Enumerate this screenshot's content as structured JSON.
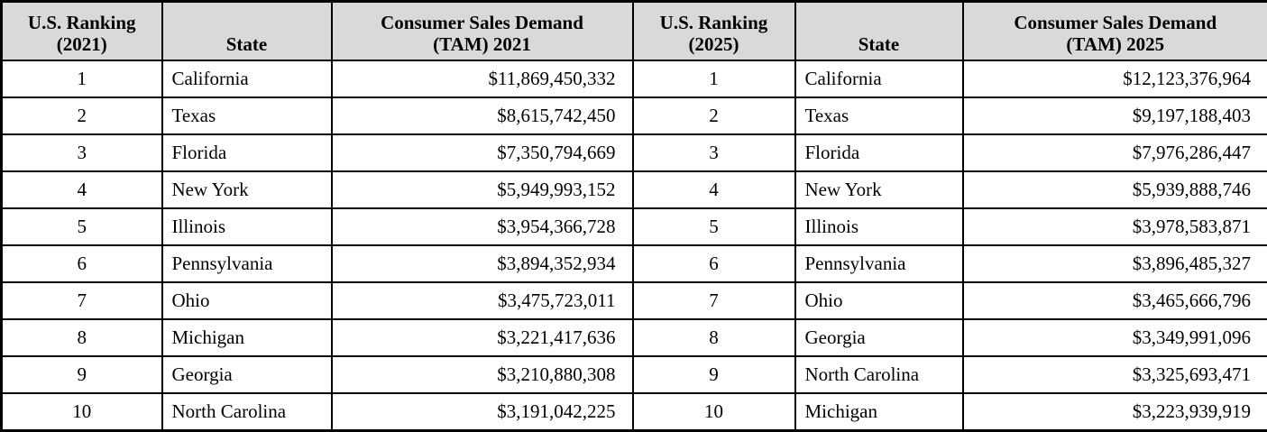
{
  "accent_colors": {
    "header_background": "#d9d9d9",
    "border": "#000000",
    "text": "#000000"
  },
  "table": {
    "headers": {
      "rank2021": {
        "line1": "U.S. Ranking",
        "line2": "(2021)"
      },
      "state1": "State",
      "tam2021": {
        "line1": "Consumer Sales Demand",
        "line2": "(TAM) 2021"
      },
      "rank2025": {
        "line1": "U.S. Ranking",
        "line2": "(2025)"
      },
      "state2": "State",
      "tam2025": {
        "line1": "Consumer Sales Demand",
        "line2": "(TAM) 2025"
      }
    },
    "rows": [
      {
        "rank_2021": "1",
        "state_2021": "California",
        "tam_2021": "$11,869,450,332",
        "rank_2025": "1",
        "state_2025": "California",
        "tam_2025": "$12,123,376,964"
      },
      {
        "rank_2021": "2",
        "state_2021": "Texas",
        "tam_2021": "$8,615,742,450",
        "rank_2025": "2",
        "state_2025": "Texas",
        "tam_2025": "$9,197,188,403"
      },
      {
        "rank_2021": "3",
        "state_2021": "Florida",
        "tam_2021": "$7,350,794,669",
        "rank_2025": "3",
        "state_2025": "Florida",
        "tam_2025": "$7,976,286,447"
      },
      {
        "rank_2021": "4",
        "state_2021": "New York",
        "tam_2021": "$5,949,993,152",
        "rank_2025": "4",
        "state_2025": "New York",
        "tam_2025": "$5,939,888,746"
      },
      {
        "rank_2021": "5",
        "state_2021": "Illinois",
        "tam_2021": "$3,954,366,728",
        "rank_2025": "5",
        "state_2025": "Illinois",
        "tam_2025": "$3,978,583,871"
      },
      {
        "rank_2021": "6",
        "state_2021": "Pennsylvania",
        "tam_2021": "$3,894,352,934",
        "rank_2025": "6",
        "state_2025": "Pennsylvania",
        "tam_2025": "$3,896,485,327"
      },
      {
        "rank_2021": "7",
        "state_2021": "Ohio",
        "tam_2021": "$3,475,723,011",
        "rank_2025": "7",
        "state_2025": "Ohio",
        "tam_2025": "$3,465,666,796"
      },
      {
        "rank_2021": "8",
        "state_2021": "Michigan",
        "tam_2021": "$3,221,417,636",
        "rank_2025": "8",
        "state_2025": "Georgia",
        "tam_2025": "$3,349,991,096"
      },
      {
        "rank_2021": "9",
        "state_2021": "Georgia",
        "tam_2021": "$3,210,880,308",
        "rank_2025": "9",
        "state_2025": "North Carolina",
        "tam_2025": "$3,325,693,471"
      },
      {
        "rank_2021": "10",
        "state_2021": "North Carolina",
        "tam_2021": "$3,191,042,225",
        "rank_2025": "10",
        "state_2025": "Michigan",
        "tam_2025": "$3,223,939,919"
      }
    ]
  }
}
